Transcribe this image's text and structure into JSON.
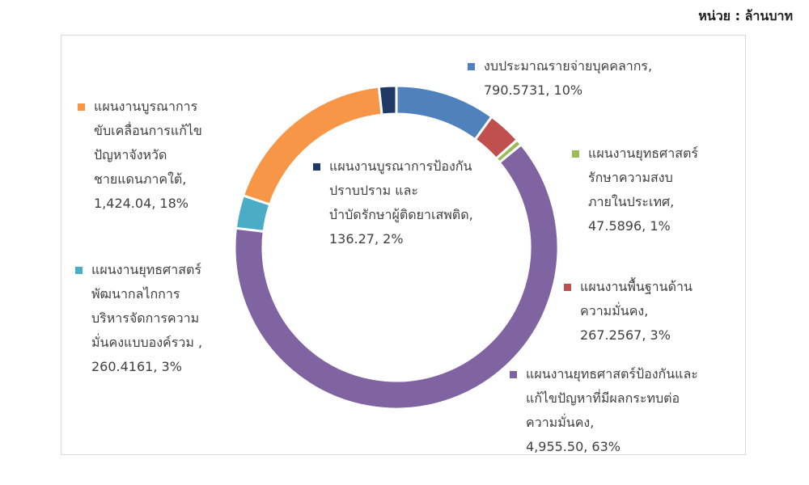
{
  "unit_label": "หน่วย : ล้านบาท",
  "chart_data": {
    "type": "pie",
    "donut": true,
    "title": "",
    "slices": [
      {
        "label": "งบประมาณรายจ่ายบุคคลากร,",
        "value_text": "790.5731, 10%",
        "value": 790.5731,
        "percent": 10,
        "color": "#4f81bd"
      },
      {
        "label": "แผนงานพื้นฐานด้านความมั่นคง,",
        "value_text": "267.2567, 3%",
        "value": 267.2567,
        "percent": 3,
        "color": "#c0504d"
      },
      {
        "label": "แผนงานยุทธศาสตร์รักษาความสงบภายในประเทศ,",
        "value_text": "47.5896, 1%",
        "value": 47.5896,
        "percent": 1,
        "color": "#9bbb59"
      },
      {
        "label": "แผนงานยุทธศาสตร์ป้องกันและแก้ไขปัญหาที่มีผลกระทบต่อความมั่นคง,",
        "value_text": "4,955.50, 63%",
        "value": 4955.5,
        "percent": 63,
        "color": "#8064a2"
      },
      {
        "label": "แผนงานยุทธศาสตร์พัฒนากลไกการบริหารจัดการความมั่นคงแบบองค์รวม ,",
        "value_text": "260.4161, 3%",
        "value": 260.4161,
        "percent": 3,
        "color": "#4bacc6"
      },
      {
        "label": "แผนงานบูรณาการขับเคลื่อนการแก้ไขปัญหาจังหวัดชายแดนภาคใต้,",
        "value_text": "1,424.04, 18%",
        "value": 1424.04,
        "percent": 18,
        "color": "#f79646"
      },
      {
        "label": "แผนงานบูรณาการป้องกันปราบปราม และบำบัดรักษาผู้ติดยาเสพติด,",
        "value_text": "136.27, 2%",
        "value": 136.27,
        "percent": 2,
        "color": "#1f3864"
      }
    ]
  },
  "legend_lines": [
    [
      "งบประมาณรายจ่ายบุคคลากร,"
    ],
    [
      "แผนงานพื้นฐานด้าน",
      "ความมั่นคง,"
    ],
    [
      "แผนงานยุทธศาสตร์",
      "รักษาความสงบ",
      "ภายในประเทศ,"
    ],
    [
      "แผนงานยุทธศาสตร์ป้องกันและ",
      "แก้ไขปัญหาที่มีผลกระทบต่อ",
      "ความมั่นคง,"
    ],
    [
      "แผนงานยุทธศาสตร์",
      "พัฒนากลไกการ",
      "บริหารจัดการความ",
      "มั่นคงแบบองค์รวม ,"
    ],
    [
      "แผนงานบูรณาการ",
      "ขับเคลื่อนการแก้ไข",
      "ปัญหาจังหวัด",
      "ชายแดนภาคใต้,"
    ],
    [
      "แผนงานบูรณาการป้องกัน",
      "ปราบปราม และ",
      "บำบัดรักษาผู้ติดยาเสพติด,"
    ]
  ]
}
